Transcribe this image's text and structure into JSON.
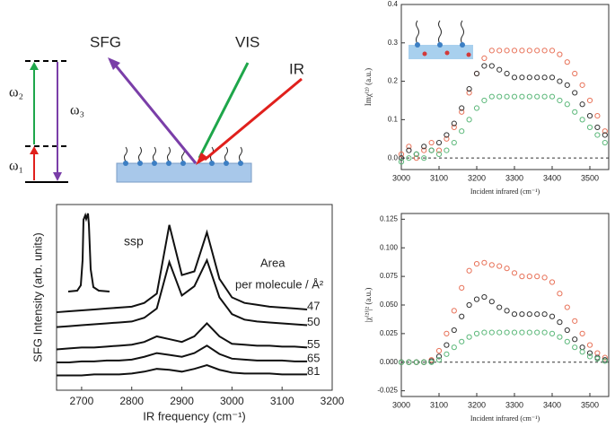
{
  "diagram": {
    "labels": [
      "SFG",
      "VIS",
      "IR",
      "ω₂",
      "ω₃",
      "ω₁"
    ]
  },
  "chart_data": [
    {
      "type": "line",
      "x_label": "IR frequency (cm⁻¹)",
      "y_label": "SFG Intensity (arb. units)",
      "annotations": [
        "ssp",
        "Area",
        "per molecule / Å²"
      ],
      "x": [
        2650,
        2675,
        2700,
        2725,
        2750,
        2775,
        2800,
        2825,
        2850,
        2875,
        2900,
        2925,
        2950,
        2975,
        3000,
        3025,
        3050,
        3075,
        3100,
        3125,
        3150
      ],
      "series": [
        {
          "name": "47",
          "color": "#111111",
          "values": [
            4.2,
            4.25,
            4.3,
            4.35,
            4.4,
            4.45,
            4.5,
            4.7,
            5.2,
            8.9,
            6.2,
            6.4,
            8.5,
            6.0,
            5.0,
            4.7,
            4.6,
            4.5,
            4.45,
            4.4,
            4.35
          ]
        },
        {
          "name": "50",
          "color": "#111111",
          "values": [
            3.4,
            3.45,
            3.5,
            3.55,
            3.6,
            3.65,
            3.7,
            3.9,
            4.4,
            6.9,
            5.1,
            5.6,
            7.0,
            5.0,
            4.1,
            3.8,
            3.7,
            3.65,
            3.6,
            3.55,
            3.5
          ]
        },
        {
          "name": "55",
          "color": "#111111",
          "values": [
            2.2,
            2.25,
            2.3,
            2.3,
            2.35,
            2.4,
            2.45,
            2.6,
            2.9,
            2.75,
            2.6,
            2.9,
            3.6,
            2.9,
            2.5,
            2.45,
            2.4,
            2.4,
            2.35,
            2.35,
            2.3
          ]
        },
        {
          "name": "65",
          "color": "#111111",
          "values": [
            1.5,
            1.5,
            1.55,
            1.55,
            1.6,
            1.6,
            1.65,
            1.8,
            2.0,
            1.9,
            1.8,
            2.0,
            2.4,
            1.95,
            1.7,
            1.65,
            1.6,
            1.6,
            1.6,
            1.55,
            1.55
          ]
        },
        {
          "name": "81",
          "color": "#111111",
          "values": [
            0.8,
            0.8,
            0.8,
            0.85,
            0.85,
            0.85,
            0.9,
            1.0,
            1.15,
            1.1,
            1.0,
            1.15,
            1.35,
            1.1,
            0.95,
            0.9,
            0.9,
            0.9,
            0.85,
            0.85,
            0.85
          ]
        }
      ],
      "xlim": [
        2650,
        3200
      ],
      "xticks": [
        2700,
        2800,
        2900,
        3000,
        3100,
        3200
      ],
      "ylim": [
        0,
        10
      ]
    },
    {
      "type": "scatter",
      "x_label": "Incident infrared (cm⁻¹)",
      "y_label": "Imχ⁽²⁾ (a.u.)",
      "zero_line": true,
      "x": [
        3000,
        3020,
        3040,
        3060,
        3080,
        3100,
        3120,
        3140,
        3160,
        3180,
        3200,
        3220,
        3240,
        3260,
        3280,
        3300,
        3320,
        3340,
        3360,
        3380,
        3400,
        3420,
        3440,
        3460,
        3480,
        3500,
        3520,
        3540
      ],
      "series": [
        {
          "color": "#e8735a",
          "values": [
            0.01,
            0.03,
            0.0,
            0.02,
            0.04,
            0.02,
            0.05,
            0.08,
            0.12,
            0.17,
            0.22,
            0.26,
            0.28,
            0.28,
            0.28,
            0.28,
            0.28,
            0.28,
            0.28,
            0.28,
            0.28,
            0.27,
            0.25,
            0.22,
            0.19,
            0.15,
            0.11,
            0.07
          ]
        },
        {
          "color": "#333333",
          "values": [
            0.0,
            0.02,
            0.01,
            0.03,
            0.02,
            0.04,
            0.06,
            0.09,
            0.13,
            0.18,
            0.22,
            0.24,
            0.24,
            0.23,
            0.22,
            0.21,
            0.21,
            0.21,
            0.21,
            0.21,
            0.21,
            0.2,
            0.19,
            0.17,
            0.14,
            0.11,
            0.08,
            0.06
          ]
        },
        {
          "color": "#5cb87a",
          "values": [
            -0.01,
            0.0,
            0.01,
            0.0,
            0.02,
            0.01,
            0.02,
            0.04,
            0.07,
            0.1,
            0.13,
            0.15,
            0.16,
            0.16,
            0.16,
            0.16,
            0.16,
            0.16,
            0.16,
            0.16,
            0.16,
            0.15,
            0.14,
            0.12,
            0.1,
            0.08,
            0.06,
            0.04
          ]
        }
      ],
      "xlim": [
        3000,
        3550
      ],
      "xticks": [
        3000,
        3100,
        3200,
        3300,
        3400,
        3500
      ],
      "ylim": [
        -0.03,
        0.4
      ],
      "yticks": [
        {
          "value": 0,
          "label": "0.0"
        },
        0.1,
        0.2,
        0.3,
        0.4
      ]
    },
    {
      "type": "scatter",
      "x_label": "Incident infrared (cm⁻¹)",
      "y_label": "|χ⁽²⁾|² (a.u.)",
      "zero_line": true,
      "x": [
        3000,
        3020,
        3040,
        3060,
        3080,
        3100,
        3120,
        3140,
        3160,
        3180,
        3200,
        3220,
        3240,
        3260,
        3280,
        3300,
        3320,
        3340,
        3360,
        3380,
        3400,
        3420,
        3440,
        3460,
        3480,
        3500,
        3520,
        3540
      ],
      "series": [
        {
          "color": "#e8735a",
          "values": [
            0,
            0,
            0,
            0,
            0.002,
            0.01,
            0.025,
            0.045,
            0.065,
            0.08,
            0.086,
            0.087,
            0.085,
            0.084,
            0.082,
            0.078,
            0.075,
            0.075,
            0.075,
            0.074,
            0.07,
            0.06,
            0.048,
            0.036,
            0.025,
            0.015,
            0.008,
            0.004
          ]
        },
        {
          "color": "#333333",
          "values": [
            0,
            0,
            0,
            0,
            0.001,
            0.005,
            0.015,
            0.028,
            0.04,
            0.05,
            0.055,
            0.057,
            0.053,
            0.048,
            0.045,
            0.042,
            0.042,
            0.042,
            0.042,
            0.042,
            0.04,
            0.035,
            0.028,
            0.02,
            0.013,
            0.008,
            0.004,
            0.002
          ]
        },
        {
          "color": "#5cb87a",
          "values": [
            0,
            0,
            0,
            0,
            0,
            0.002,
            0.007,
            0.013,
            0.018,
            0.022,
            0.025,
            0.026,
            0.026,
            0.026,
            0.026,
            0.026,
            0.026,
            0.026,
            0.026,
            0.026,
            0.025,
            0.022,
            0.018,
            0.013,
            0.009,
            0.005,
            0.003,
            0.001
          ]
        }
      ],
      "xlim": [
        3000,
        3550
      ],
      "xticks": [
        3000,
        3100,
        3200,
        3300,
        3400,
        3500
      ],
      "ylim": [
        -0.03,
        0.13
      ],
      "yticks": [
        -0.025,
        {
          "value": 0,
          "label": "0.000"
        },
        0.025,
        {
          "value": 0.05,
          "label": "0.050"
        },
        0.075,
        {
          "value": 0.1,
          "label": "0.100"
        },
        0.125
      ]
    }
  ]
}
